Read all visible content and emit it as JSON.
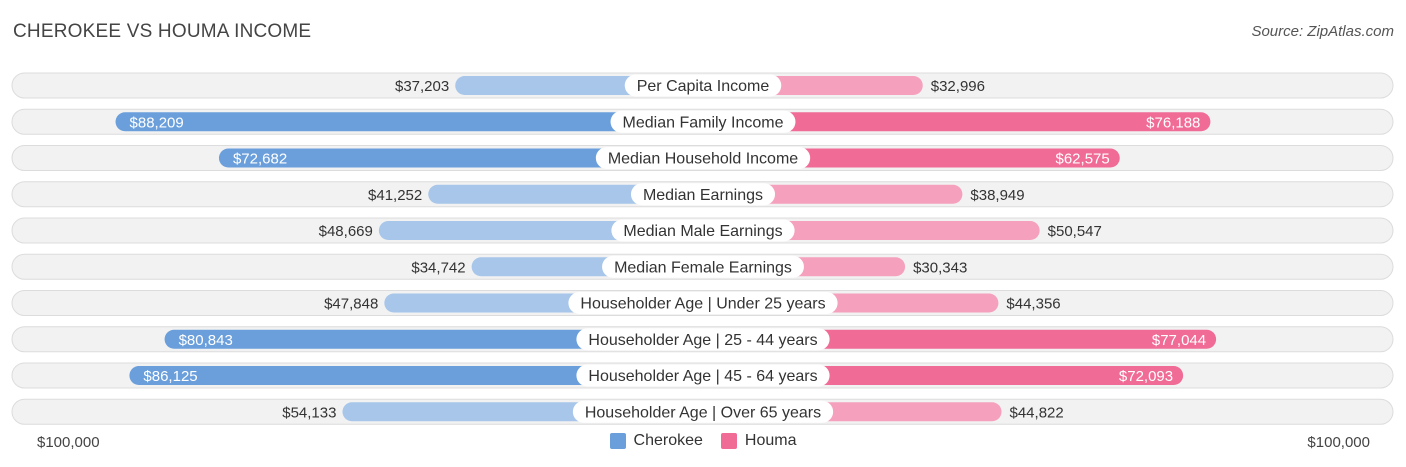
{
  "title": "CHEROKEE VS HOUMA INCOME",
  "source": "Source: ZipAtlas.com",
  "axis": {
    "left_label": "$100,000",
    "right_label": "$100,000"
  },
  "legend": [
    {
      "name": "Cherokee",
      "color": "#6a9fdc"
    },
    {
      "name": "Houma",
      "color": "#f06b96"
    }
  ],
  "chart_data": {
    "type": "bar",
    "title": "CHEROKEE VS HOUMA INCOME",
    "orientation": "horizontal-diverging",
    "xlim": [
      0,
      100000
    ],
    "categories": [
      "Per Capita Income",
      "Median Family Income",
      "Median Household Income",
      "Median Earnings",
      "Median Male Earnings",
      "Median Female Earnings",
      "Householder Age | Under 25 years",
      "Householder Age | 25 - 44 years",
      "Householder Age | 45 - 64 years",
      "Householder Age | Over 65 years"
    ],
    "series": [
      {
        "name": "Cherokee",
        "side": "left",
        "values": [
          37203,
          88209,
          72682,
          41252,
          48669,
          34742,
          47848,
          80843,
          86125,
          54133
        ],
        "labels": [
          "$37,203",
          "$88,209",
          "$72,682",
          "$41,252",
          "$48,669",
          "$34,742",
          "$47,848",
          "$80,843",
          "$86,125",
          "$54,133"
        ]
      },
      {
        "name": "Houma",
        "side": "right",
        "values": [
          32996,
          76188,
          62575,
          38949,
          50547,
          30343,
          44356,
          77044,
          72093,
          44822
        ],
        "labels": [
          "$32,996",
          "$76,188",
          "$62,575",
          "$38,949",
          "$50,547",
          "$30,343",
          "$44,356",
          "$77,044",
          "$72,093",
          "$44,822"
        ]
      }
    ],
    "colors": {
      "cherokee_strong": "#6a9fdc",
      "cherokee_light": "#a7c6ea",
      "houma_strong": "#f06b96",
      "houma_light": "#f5a0bc"
    },
    "strong_threshold": 60000
  }
}
